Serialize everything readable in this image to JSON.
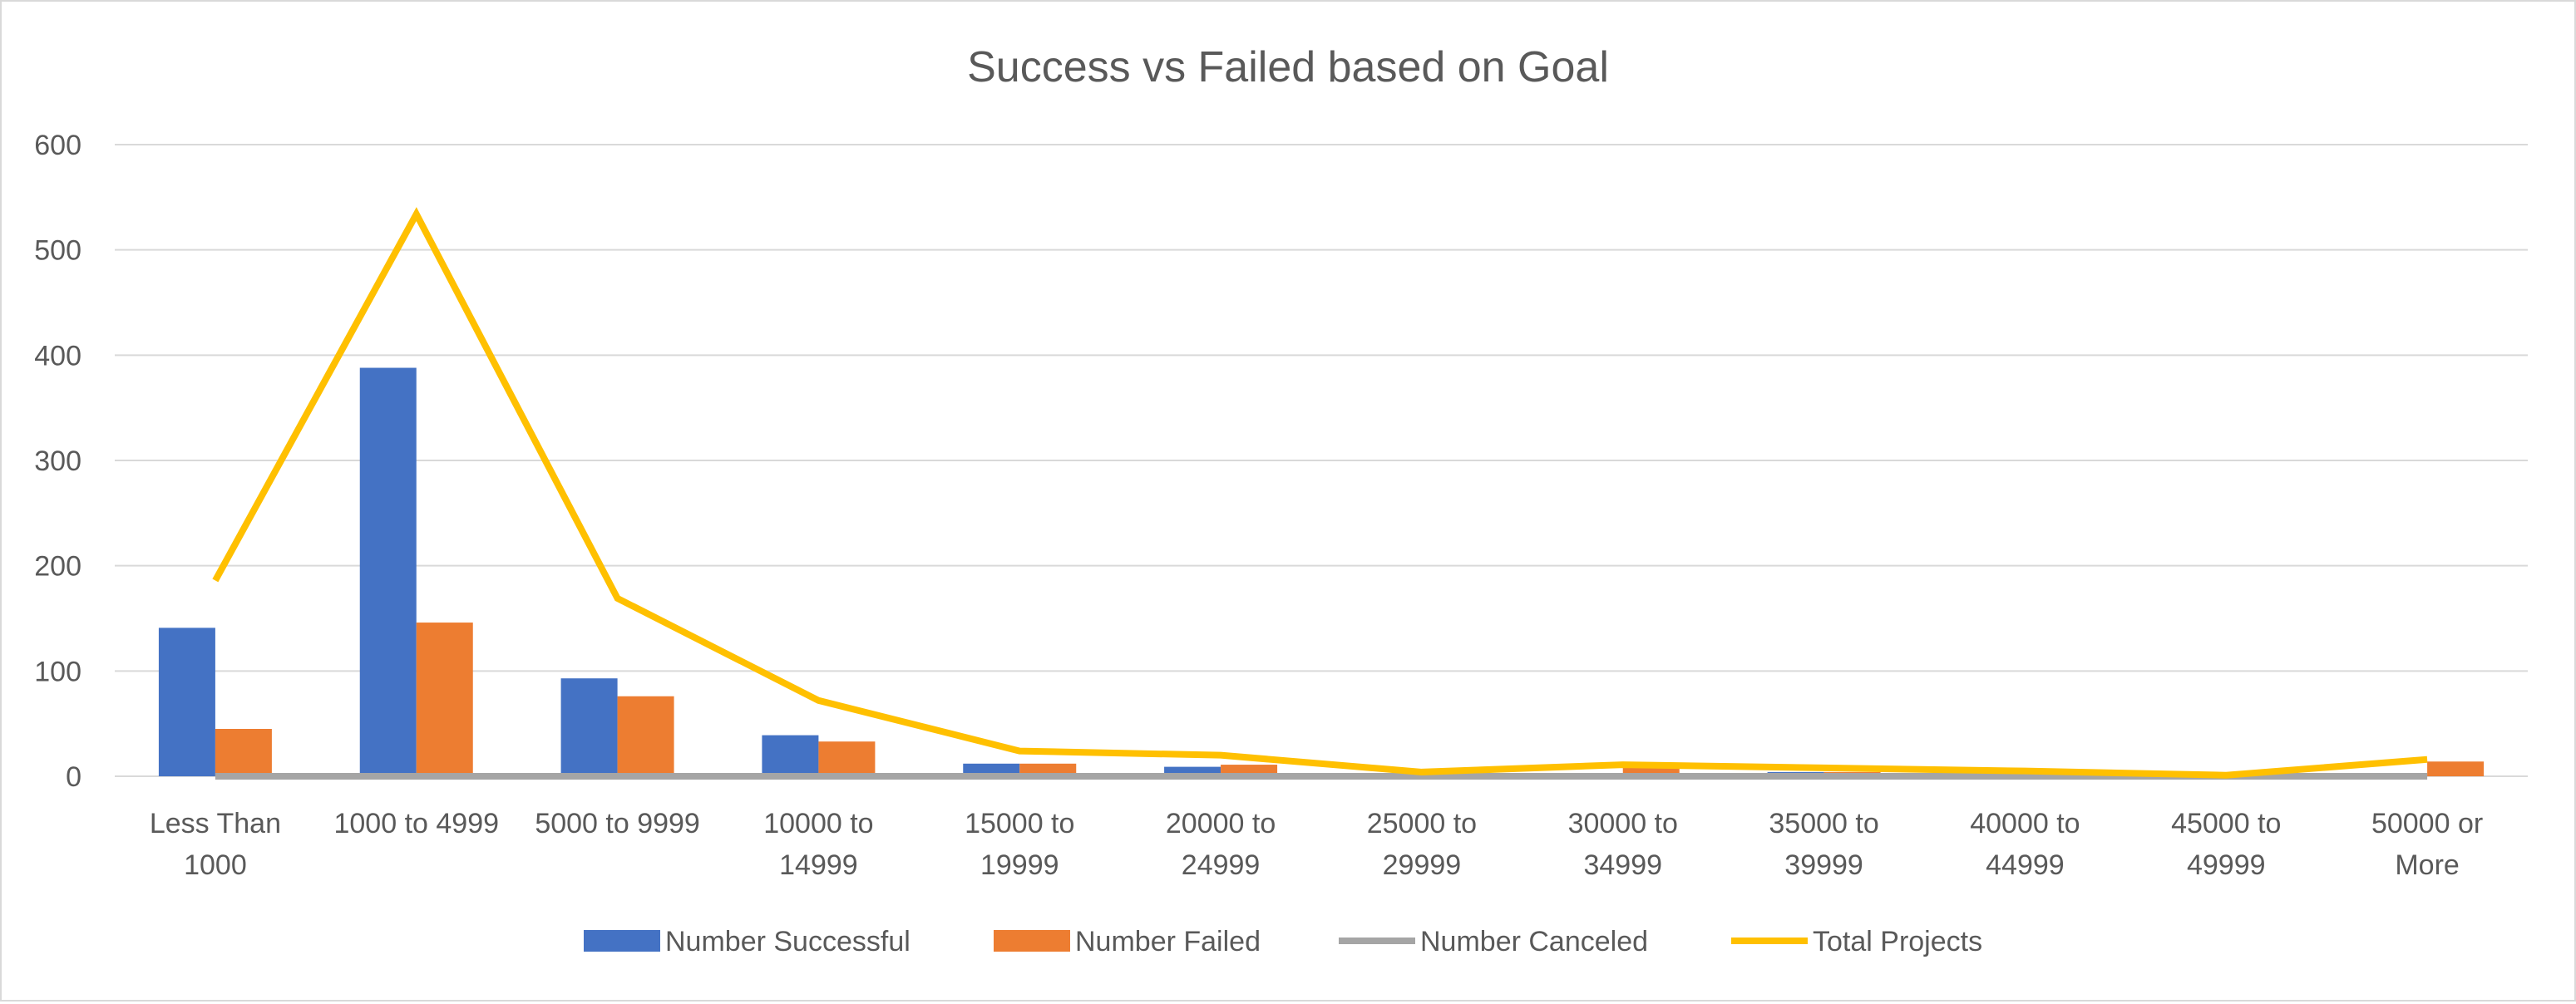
{
  "chart_data": {
    "type": "bar",
    "title": "Success vs Failed based on Goal",
    "categories": [
      [
        "Less Than",
        "1000"
      ],
      [
        "1000 to 4999"
      ],
      [
        "5000 to 9999"
      ],
      [
        "10000 to",
        "14999"
      ],
      [
        "15000 to",
        "19999"
      ],
      [
        "20000 to",
        "24999"
      ],
      [
        "25000 to",
        "29999"
      ],
      [
        "30000 to",
        "34999"
      ],
      [
        "35000 to",
        "39999"
      ],
      [
        "40000 to",
        "44999"
      ],
      [
        "45000 to",
        "49999"
      ],
      [
        "50000 or",
        "More"
      ]
    ],
    "ylim": [
      0,
      600
    ],
    "yticks": [
      0,
      100,
      200,
      300,
      400,
      500,
      600
    ],
    "grid": true,
    "legend_position": "bottom",
    "series": [
      {
        "name": "Number Successful",
        "kind": "bar",
        "color": "#4472c4",
        "values": [
          141,
          388,
          93,
          39,
          12,
          9,
          1,
          3,
          4,
          2,
          0,
          2
        ]
      },
      {
        "name": "Number Failed",
        "kind": "bar",
        "color": "#ed7d31",
        "values": [
          45,
          146,
          76,
          33,
          12,
          11,
          3,
          8,
          4,
          3,
          1,
          14
        ]
      },
      {
        "name": "Number Canceled",
        "kind": "line",
        "color": "#a5a5a5",
        "values": [
          0,
          0,
          0,
          0,
          0,
          0,
          0,
          0,
          0,
          0,
          0,
          0
        ]
      },
      {
        "name": "Total Projects",
        "kind": "line",
        "color": "#ffc000",
        "values": [
          186,
          534,
          169,
          72,
          24,
          20,
          4,
          11,
          8,
          5,
          1,
          16
        ]
      }
    ]
  }
}
